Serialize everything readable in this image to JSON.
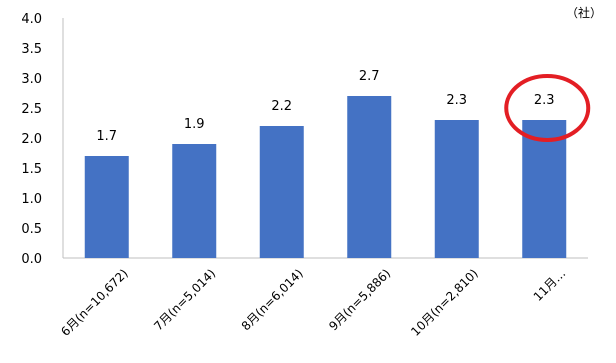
{
  "chart_data": {
    "type": "bar",
    "title": "",
    "unit_label": "（社）",
    "categories": [
      "6月(n=10,672)",
      "7月(n=5,014)",
      "8月(n=6,014)",
      "9月(n=5,886)",
      "10月(n=2,810)",
      "11月…"
    ],
    "values": [
      1.7,
      1.9,
      2.2,
      2.7,
      2.3,
      2.3
    ],
    "data_labels": [
      "1.7",
      "1.9",
      "2.2",
      "2.7",
      "2.3",
      "2.3"
    ],
    "ylim": [
      0,
      4.0
    ],
    "yticks": [
      "0.0",
      "0.5",
      "1.0",
      "1.5",
      "2.0",
      "2.5",
      "3.0",
      "3.5",
      "4.0"
    ],
    "xlabel": "",
    "ylabel": "",
    "grid": false,
    "bar_color": "#4472C4",
    "highlight": {
      "index": 5,
      "shape": "circle",
      "color": "#E31E24"
    }
  }
}
